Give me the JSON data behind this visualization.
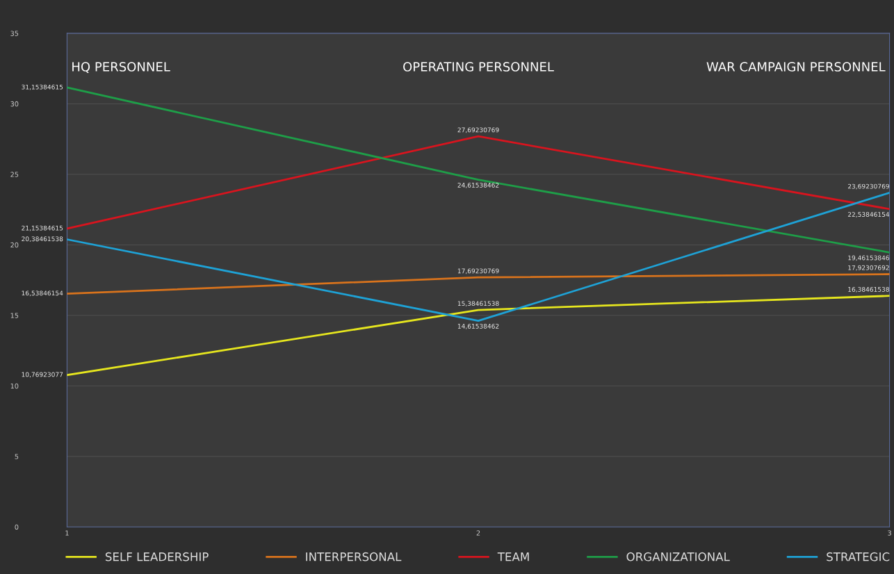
{
  "chart_data": {
    "type": "line",
    "x": [
      1,
      2,
      3
    ],
    "xlim": [
      1,
      3
    ],
    "xticks": [
      1,
      2,
      3
    ],
    "ylim": [
      0,
      35
    ],
    "yticks": [
      0,
      5,
      10,
      15,
      20,
      25,
      30,
      35
    ],
    "grid": "y",
    "legend": "bottom",
    "marker": "none",
    "line_style": "solid",
    "annotations": [
      "HQ PERSONNEL",
      "OPERATING PERSONNEL",
      "WAR CAMPAIGN PERSONNEL"
    ],
    "series": [
      {
        "name": "SELF LEADERSHIP",
        "color": "#e6e61e",
        "values": [
          10.76923077,
          15.38461538,
          16.38461538
        ],
        "value_labels": [
          "10,76923077",
          "15,38461538",
          "16,38461538"
        ]
      },
      {
        "name": "INTERPERSONAL",
        "color": "#d9731c",
        "values": [
          16.53846154,
          17.69230769,
          17.92307692
        ],
        "value_labels": [
          "16,53846154",
          "17,69230769",
          "17,92307692"
        ]
      },
      {
        "name": "TEAM",
        "color": "#d8141e",
        "values": [
          21.15384615,
          27.69230769,
          22.53846154
        ],
        "value_labels": [
          "21,15384615",
          "27,69230769",
          "22,53846154"
        ]
      },
      {
        "name": "ORGANIZATIONAL",
        "color": "#1e9e48",
        "values": [
          31.15384615,
          24.61538462,
          19.46153846
        ],
        "value_labels": [
          "31,15384615",
          "24,61538462",
          "19,46153846"
        ]
      },
      {
        "name": "STRATEGIC",
        "color": "#1ea2d6",
        "values": [
          20.38461538,
          14.61538462,
          23.69230769
        ],
        "value_labels": [
          "20,38461538",
          "14,61538462",
          "23,69230769"
        ]
      }
    ]
  }
}
